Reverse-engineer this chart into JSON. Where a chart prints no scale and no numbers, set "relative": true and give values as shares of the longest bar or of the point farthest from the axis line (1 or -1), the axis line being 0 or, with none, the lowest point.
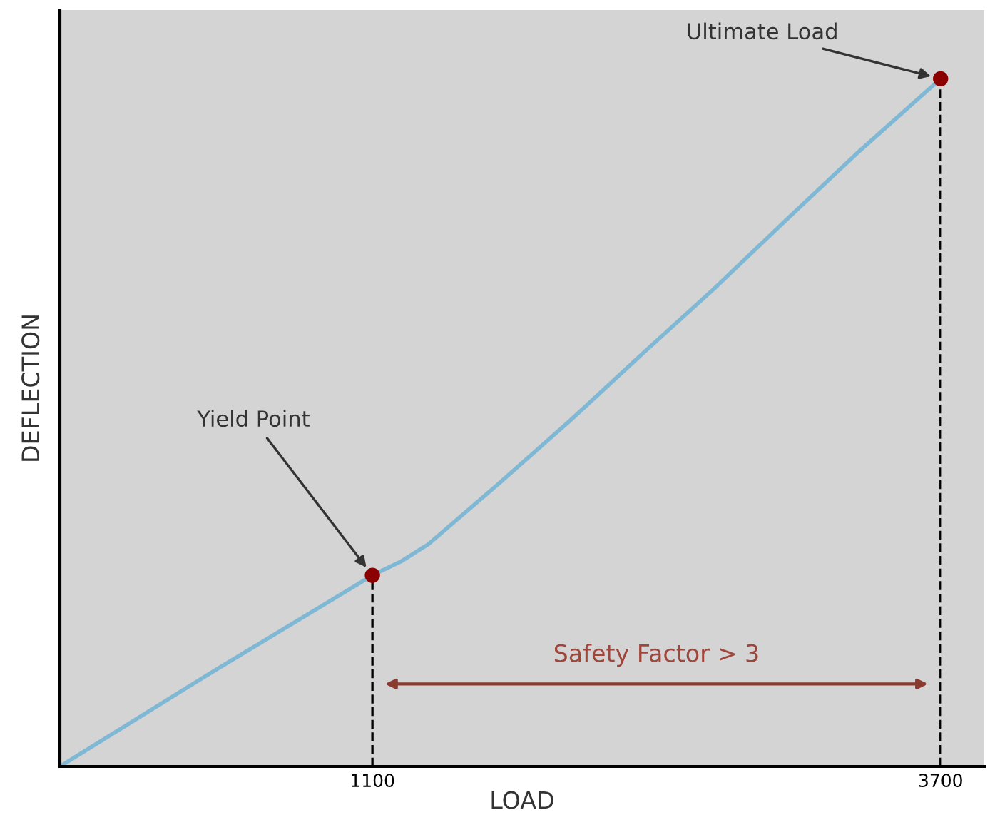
{
  "chart_data": {
    "type": "line",
    "relative": true,
    "xlabel": "LOAD",
    "ylabel": "DEFLECTION",
    "xlim": [
      -330,
      3900
    ],
    "xticks": [
      1100,
      3700
    ],
    "grid": false,
    "marker": "none",
    "line_style": "solid",
    "series": [
      {
        "color": "#7fb8d4",
        "x": [
          -330,
          375,
          1100,
          1230,
          1355,
          1681,
          2008,
          2335,
          2661,
          2988,
          3315,
          3700
        ],
        "values": [
          0,
          0.139,
          0.278,
          0.298,
          0.323,
          0.412,
          0.504,
          0.6,
          0.694,
          0.793,
          0.891,
          1
        ]
      },
      {
        "type": "scatter",
        "color": "#8b0000",
        "marker": "circle",
        "x": [
          1100,
          3700
        ],
        "values": [
          0.278,
          1
        ]
      }
    ],
    "ref_lines": [
      {
        "axis": "x",
        "value": 1100,
        "label": null,
        "color": "#000000",
        "line_style": "dashed"
      },
      {
        "axis": "x",
        "value": 3700,
        "label": null,
        "color": "#000000",
        "line_style": "dashed"
      }
    ],
    "annotations": [
      {
        "text": "Yield Point",
        "x": 1100,
        "y": 0.278
      },
      {
        "text": "Ultimate Load",
        "x": 3700,
        "y": 1
      },
      "Safety Factor > 3"
    ]
  }
}
